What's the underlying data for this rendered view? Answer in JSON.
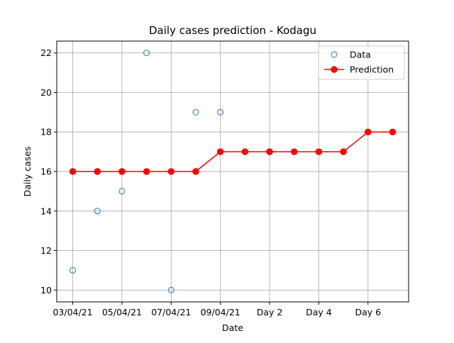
{
  "chart_data": {
    "type": "line",
    "title": "Daily cases prediction - Kodagu",
    "xlabel": "Date",
    "ylabel": "Daily cases",
    "x_tick_labels": [
      "03/04/21",
      "05/04/21",
      "07/04/21",
      "09/04/21",
      "Day 2",
      "Day 4",
      "Day 6"
    ],
    "y_ticks": [
      10,
      12,
      14,
      16,
      18,
      20,
      22
    ],
    "ylim": [
      9.4,
      22.6
    ],
    "grid": true,
    "legend_position": "top-right",
    "series": [
      {
        "name": "Data",
        "style": "markers",
        "color": "#1f77b4",
        "points": [
          {
            "x": "03/04/21",
            "y": 11
          },
          {
            "x": "04/04/21",
            "y": 14
          },
          {
            "x": "05/04/21",
            "y": 15
          },
          {
            "x": "06/04/21",
            "y": 22
          },
          {
            "x": "07/04/21",
            "y": 10
          },
          {
            "x": "08/04/21",
            "y": 19
          },
          {
            "x": "09/04/21",
            "y": 19
          }
        ]
      },
      {
        "name": "Prediction",
        "style": "line-markers",
        "color": "#ff0000",
        "points": [
          {
            "x": "03/04/21",
            "y": 16
          },
          {
            "x": "04/04/21",
            "y": 16
          },
          {
            "x": "05/04/21",
            "y": 16
          },
          {
            "x": "06/04/21",
            "y": 16
          },
          {
            "x": "07/04/21",
            "y": 16
          },
          {
            "x": "08/04/21",
            "y": 16
          },
          {
            "x": "09/04/21",
            "y": 17
          },
          {
            "x": "Day 1",
            "y": 17
          },
          {
            "x": "Day 2",
            "y": 17
          },
          {
            "x": "Day 3",
            "y": 17
          },
          {
            "x": "Day 4",
            "y": 17
          },
          {
            "x": "Day 5",
            "y": 17
          },
          {
            "x": "Day 6",
            "y": 18
          },
          {
            "x": "Day 7",
            "y": 18
          }
        ]
      }
    ]
  }
}
